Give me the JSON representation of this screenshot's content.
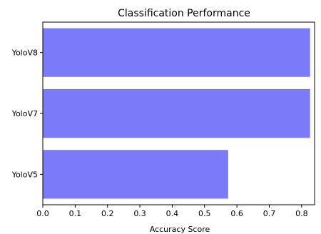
{
  "chart_data": {
    "type": "bar",
    "orientation": "horizontal",
    "title": "Classification Performance",
    "xlabel": "Accuracy Score",
    "ylabel": "",
    "categories": [
      "YoloV5",
      "YoloV7",
      "YoloV8"
    ],
    "values": [
      0.573,
      0.826,
      0.826
    ],
    "xlim": [
      0.0,
      0.84
    ],
    "xticks": [
      "0.0",
      "0.1",
      "0.2",
      "0.3",
      "0.4",
      "0.5",
      "0.6",
      "0.7",
      "0.8"
    ],
    "grid": false,
    "bar_color": "#7b7bfa"
  }
}
